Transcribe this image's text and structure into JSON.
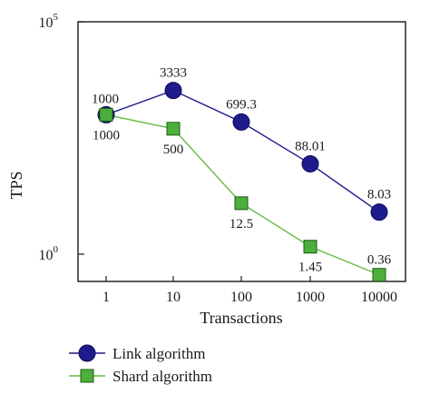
{
  "chart_data": {
    "type": "line",
    "x_scale": "log",
    "y_scale": "log",
    "x_ticks": [
      1,
      10,
      100,
      1000,
      10000
    ],
    "x_tick_labels": [
      "1",
      "10",
      "100",
      "1000",
      "10000"
    ],
    "y_ticks": [
      1,
      100000
    ],
    "y_tick_base": "10",
    "y_tick_exponents": [
      "0",
      "5"
    ],
    "xlabel": "Transactions",
    "ylabel": "TPS",
    "xlim": [
      1,
      10000
    ],
    "ylim": [
      0.36,
      100000
    ],
    "grid": false,
    "legend_position": "bottom",
    "series": [
      {
        "name": "Link algorithm",
        "marker": "circle",
        "color": "#1e1b8c",
        "line_color": "#1e1b8c",
        "x": [
          1,
          10,
          100,
          1000,
          10000
        ],
        "values": [
          1000,
          3333,
          699.3,
          88.01,
          8.03
        ],
        "labels": [
          "1000",
          "3333",
          "699.3",
          "88.01",
          "8.03"
        ]
      },
      {
        "name": "Shard algorithm",
        "marker": "square",
        "color": "#4caf3c",
        "line_color": "#66bb44",
        "x": [
          1,
          10,
          100,
          1000,
          10000
        ],
        "values": [
          1000,
          500,
          12.5,
          1.45,
          0.36
        ],
        "labels": [
          "1000",
          "500",
          "12.5",
          "1.45",
          "0.36"
        ]
      }
    ]
  }
}
